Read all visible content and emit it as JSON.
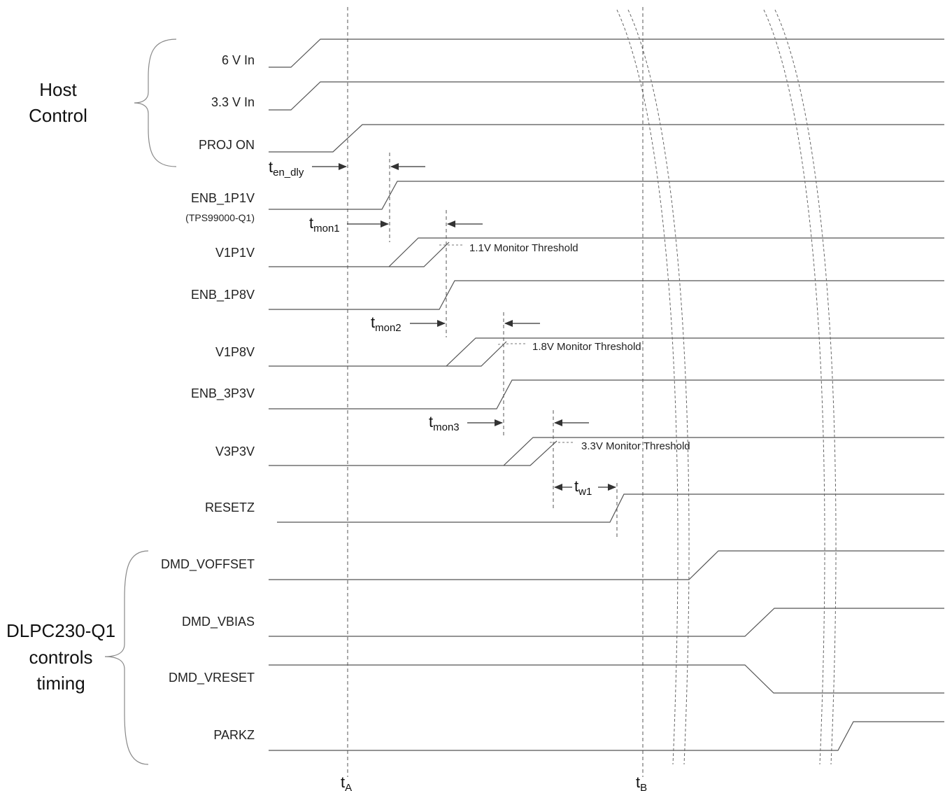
{
  "groups": {
    "host": [
      "Host",
      "Control"
    ],
    "dlpc": [
      "DLPC230-Q1",
      "controls",
      "timing"
    ]
  },
  "signals": {
    "s6v": "6 V In",
    "s3v3": "3.3 V In",
    "proj_on": "PROJ ON",
    "enb_1p1v": "ENB_1P1V",
    "enb_1p1v_sub": "(TPS99000-Q1)",
    "v1p1v": "V1P1V",
    "enb_1p8v": "ENB_1P8V",
    "v1p8v": "V1P8V",
    "enb_3p3v": "ENB_3P3V",
    "v3p3v": "V3P3V",
    "resetz": "RESETZ",
    "dmd_voffset": "DMD_VOFFSET",
    "dmd_vbias": "DMD_VBIAS",
    "dmd_vreset": "DMD_VRESET",
    "parkz": "PARKZ"
  },
  "thresholds": {
    "t1": "1.1V Monitor Threshold",
    "t2": "1.8V Monitor Threshold",
    "t3": "3.3V Monitor Threshold"
  },
  "timing": {
    "en_dly": {
      "main": "t",
      "sub": "en_dly"
    },
    "mon1": {
      "main": "t",
      "sub": "mon1"
    },
    "mon2": {
      "main": "t",
      "sub": "mon2"
    },
    "mon3": {
      "main": "t",
      "sub": "mon3"
    },
    "w1": {
      "main": "t",
      "sub": "w1"
    }
  },
  "markers": {
    "ta": {
      "main": "t",
      "sub": "A"
    },
    "tb": {
      "main": "t",
      "sub": "B"
    }
  }
}
